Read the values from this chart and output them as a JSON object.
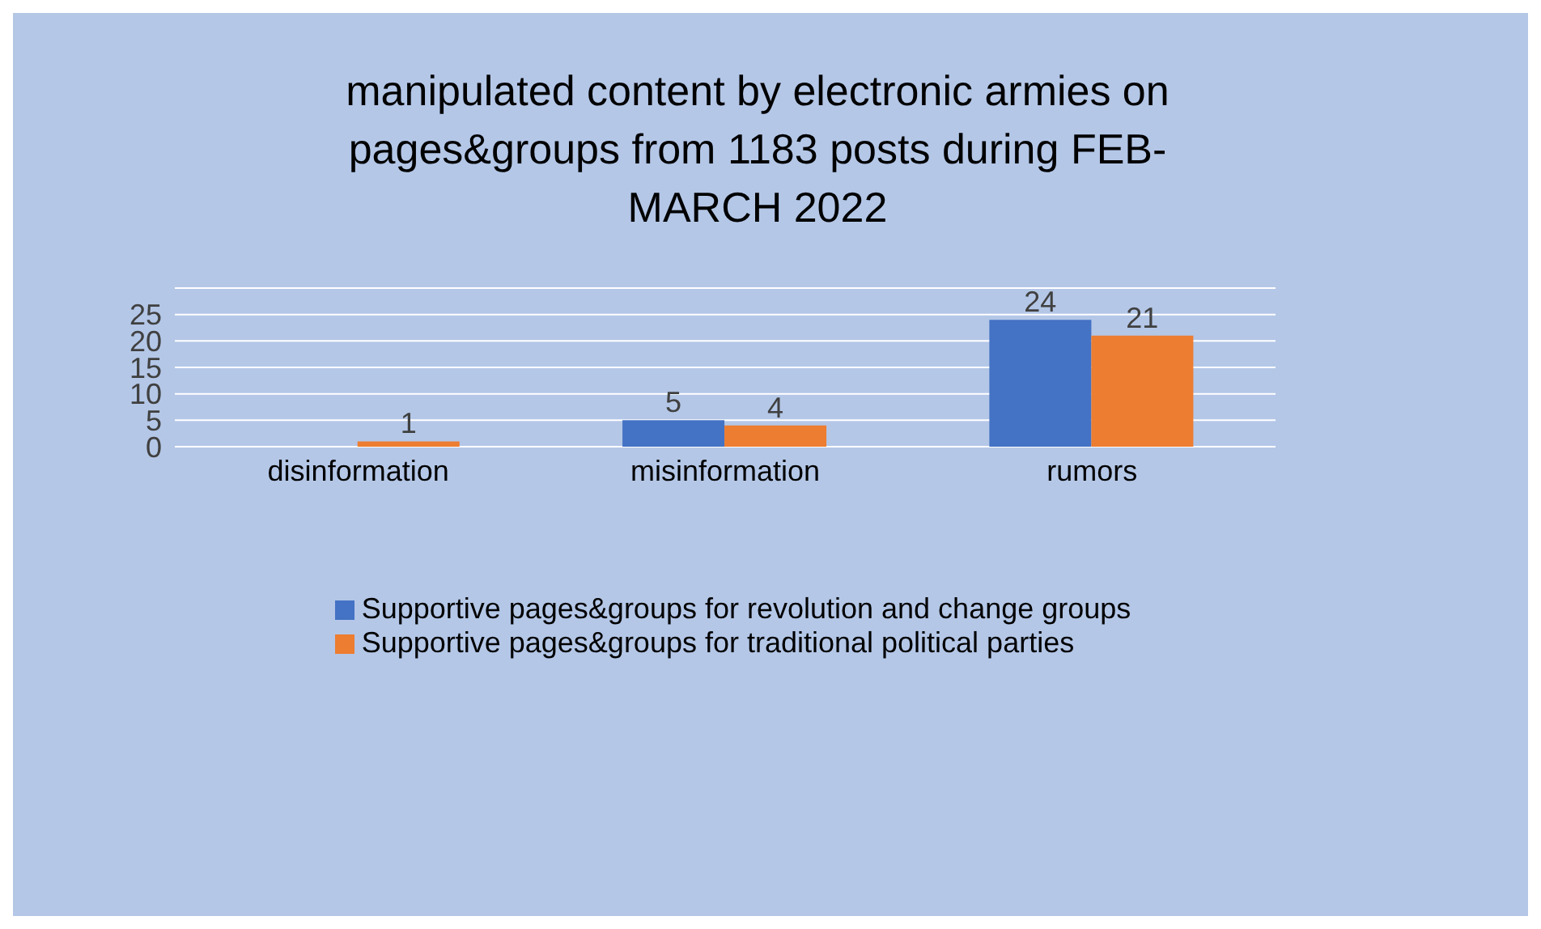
{
  "chart_data": {
    "type": "bar",
    "title": "manipulated content by electronic armies on pages&groups from 1183 posts during FEB-MARCH 2022",
    "categories": [
      "disinformation",
      "misinformation",
      "rumors"
    ],
    "series": [
      {
        "name": "Supportive pages&groups  for revolution and change groups",
        "color": "#4472c4",
        "values": [
          0,
          5,
          24
        ],
        "value_labels": [
          null,
          "5",
          "24"
        ]
      },
      {
        "name": "Supportive pages&groups for traditional political parties",
        "color": "#ed7d31",
        "values": [
          1,
          4,
          21
        ],
        "value_labels": [
          "1",
          "4",
          "21"
        ]
      }
    ],
    "ylim": [
      0,
      30
    ],
    "yticks": [
      0,
      5,
      10,
      15,
      20,
      25,
      {
        "value": 30,
        "label": null
      }
    ],
    "grid": "y",
    "legend": "bottom"
  }
}
